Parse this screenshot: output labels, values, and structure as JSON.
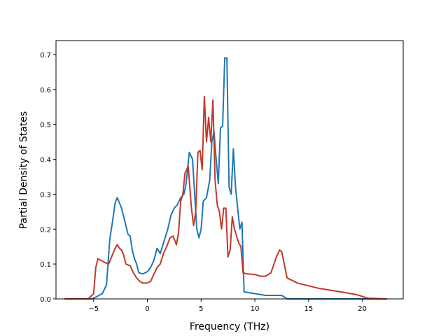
{
  "chart_data": {
    "type": "line",
    "title": "",
    "xlabel": "Frequency (THz)",
    "ylabel": "Partial Density of States",
    "xlim": [
      -8.5,
      23.8
    ],
    "ylim": [
      0,
      0.74
    ],
    "xticks": [
      -5,
      0,
      5,
      10,
      15,
      20
    ],
    "yticks": [
      0.0,
      0.1,
      0.2,
      0.3,
      0.4,
      0.5,
      0.6,
      0.7
    ],
    "xtick_labels": [
      "−5",
      "0",
      "5",
      "10",
      "15",
      "20"
    ],
    "ytick_labels": [
      "0.0",
      "0.1",
      "0.2",
      "0.3",
      "0.4",
      "0.5",
      "0.6",
      "0.7"
    ],
    "grid": false,
    "series": [
      {
        "color": "#1f77b4",
        "x": [
          -7.7,
          -5.2,
          -4.8,
          -4.2,
          -3.8,
          -3.5,
          -3.2,
          -3.0,
          -2.8,
          -2.6,
          -2.4,
          -2.0,
          -1.8,
          -1.6,
          -1.4,
          -1.2,
          -1.0,
          -0.8,
          -0.6,
          -0.4,
          -0.2,
          0.0,
          0.3,
          0.6,
          0.9,
          1.2,
          1.4,
          1.6,
          1.9,
          2.2,
          2.5,
          2.8,
          3.1,
          3.4,
          3.6,
          3.9,
          4.2,
          4.4,
          4.6,
          4.8,
          5.0,
          5.2,
          5.5,
          5.8,
          6.0,
          6.2,
          6.4,
          6.6,
          6.8,
          7.0,
          7.2,
          7.4,
          7.6,
          7.8,
          8.0,
          8.2,
          8.4,
          8.6,
          8.8,
          9.0,
          10.0,
          11.0,
          12.0,
          12.5,
          13.0,
          14.0,
          16.0,
          20.0,
          22.3
        ],
        "y": [
          0.0,
          0.0,
          0.005,
          0.015,
          0.04,
          0.17,
          0.23,
          0.275,
          0.29,
          0.275,
          0.26,
          0.21,
          0.185,
          0.18,
          0.14,
          0.115,
          0.1,
          0.075,
          0.073,
          0.072,
          0.075,
          0.078,
          0.09,
          0.11,
          0.145,
          0.13,
          0.15,
          0.17,
          0.2,
          0.24,
          0.26,
          0.27,
          0.29,
          0.3,
          0.33,
          0.42,
          0.4,
          0.3,
          0.2,
          0.175,
          0.2,
          0.28,
          0.29,
          0.34,
          0.45,
          0.48,
          0.4,
          0.33,
          0.49,
          0.495,
          0.69,
          0.69,
          0.32,
          0.3,
          0.43,
          0.32,
          0.26,
          0.2,
          0.22,
          0.02,
          0.015,
          0.01,
          0.01,
          0.01,
          0.0,
          0.0,
          0.0,
          0.0,
          0.0
        ]
      },
      {
        "color": "#c0392b",
        "x": [
          -7.7,
          -5.5,
          -5.0,
          -4.8,
          -4.6,
          -4.3,
          -4.0,
          -3.6,
          -3.2,
          -3.0,
          -2.8,
          -2.6,
          -2.4,
          -2.2,
          -2.0,
          -1.6,
          -1.3,
          -1.0,
          -0.7,
          -0.4,
          -0.2,
          0.0,
          0.3,
          0.6,
          0.9,
          1.2,
          1.5,
          1.8,
          2.1,
          2.4,
          2.7,
          2.9,
          3.1,
          3.3,
          3.5,
          3.8,
          4.1,
          4.3,
          4.5,
          4.7,
          4.9,
          5.1,
          5.3,
          5.5,
          5.7,
          5.9,
          6.1,
          6.3,
          6.5,
          6.7,
          6.9,
          7.1,
          7.3,
          7.5,
          7.7,
          7.9,
          8.1,
          8.3,
          8.5,
          8.7,
          8.9,
          9.2,
          10.0,
          10.5,
          11.0,
          11.5,
          12.0,
          12.3,
          12.5,
          13.0,
          14.0,
          16.0,
          18.0,
          19.5,
          20.5,
          22.3
        ],
        "y": [
          0.0,
          0.0,
          0.015,
          0.09,
          0.115,
          0.11,
          0.105,
          0.1,
          0.13,
          0.145,
          0.155,
          0.145,
          0.14,
          0.125,
          0.1,
          0.095,
          0.075,
          0.06,
          0.05,
          0.045,
          0.045,
          0.046,
          0.05,
          0.07,
          0.09,
          0.1,
          0.13,
          0.15,
          0.175,
          0.18,
          0.155,
          0.19,
          0.28,
          0.3,
          0.36,
          0.38,
          0.26,
          0.21,
          0.25,
          0.42,
          0.425,
          0.37,
          0.58,
          0.45,
          0.52,
          0.45,
          0.57,
          0.34,
          0.27,
          0.25,
          0.2,
          0.26,
          0.26,
          0.12,
          0.14,
          0.235,
          0.2,
          0.18,
          0.16,
          0.15,
          0.075,
          0.072,
          0.07,
          0.065,
          0.065,
          0.075,
          0.12,
          0.14,
          0.135,
          0.06,
          0.045,
          0.03,
          0.02,
          0.012,
          0.002,
          0.0
        ]
      }
    ]
  }
}
